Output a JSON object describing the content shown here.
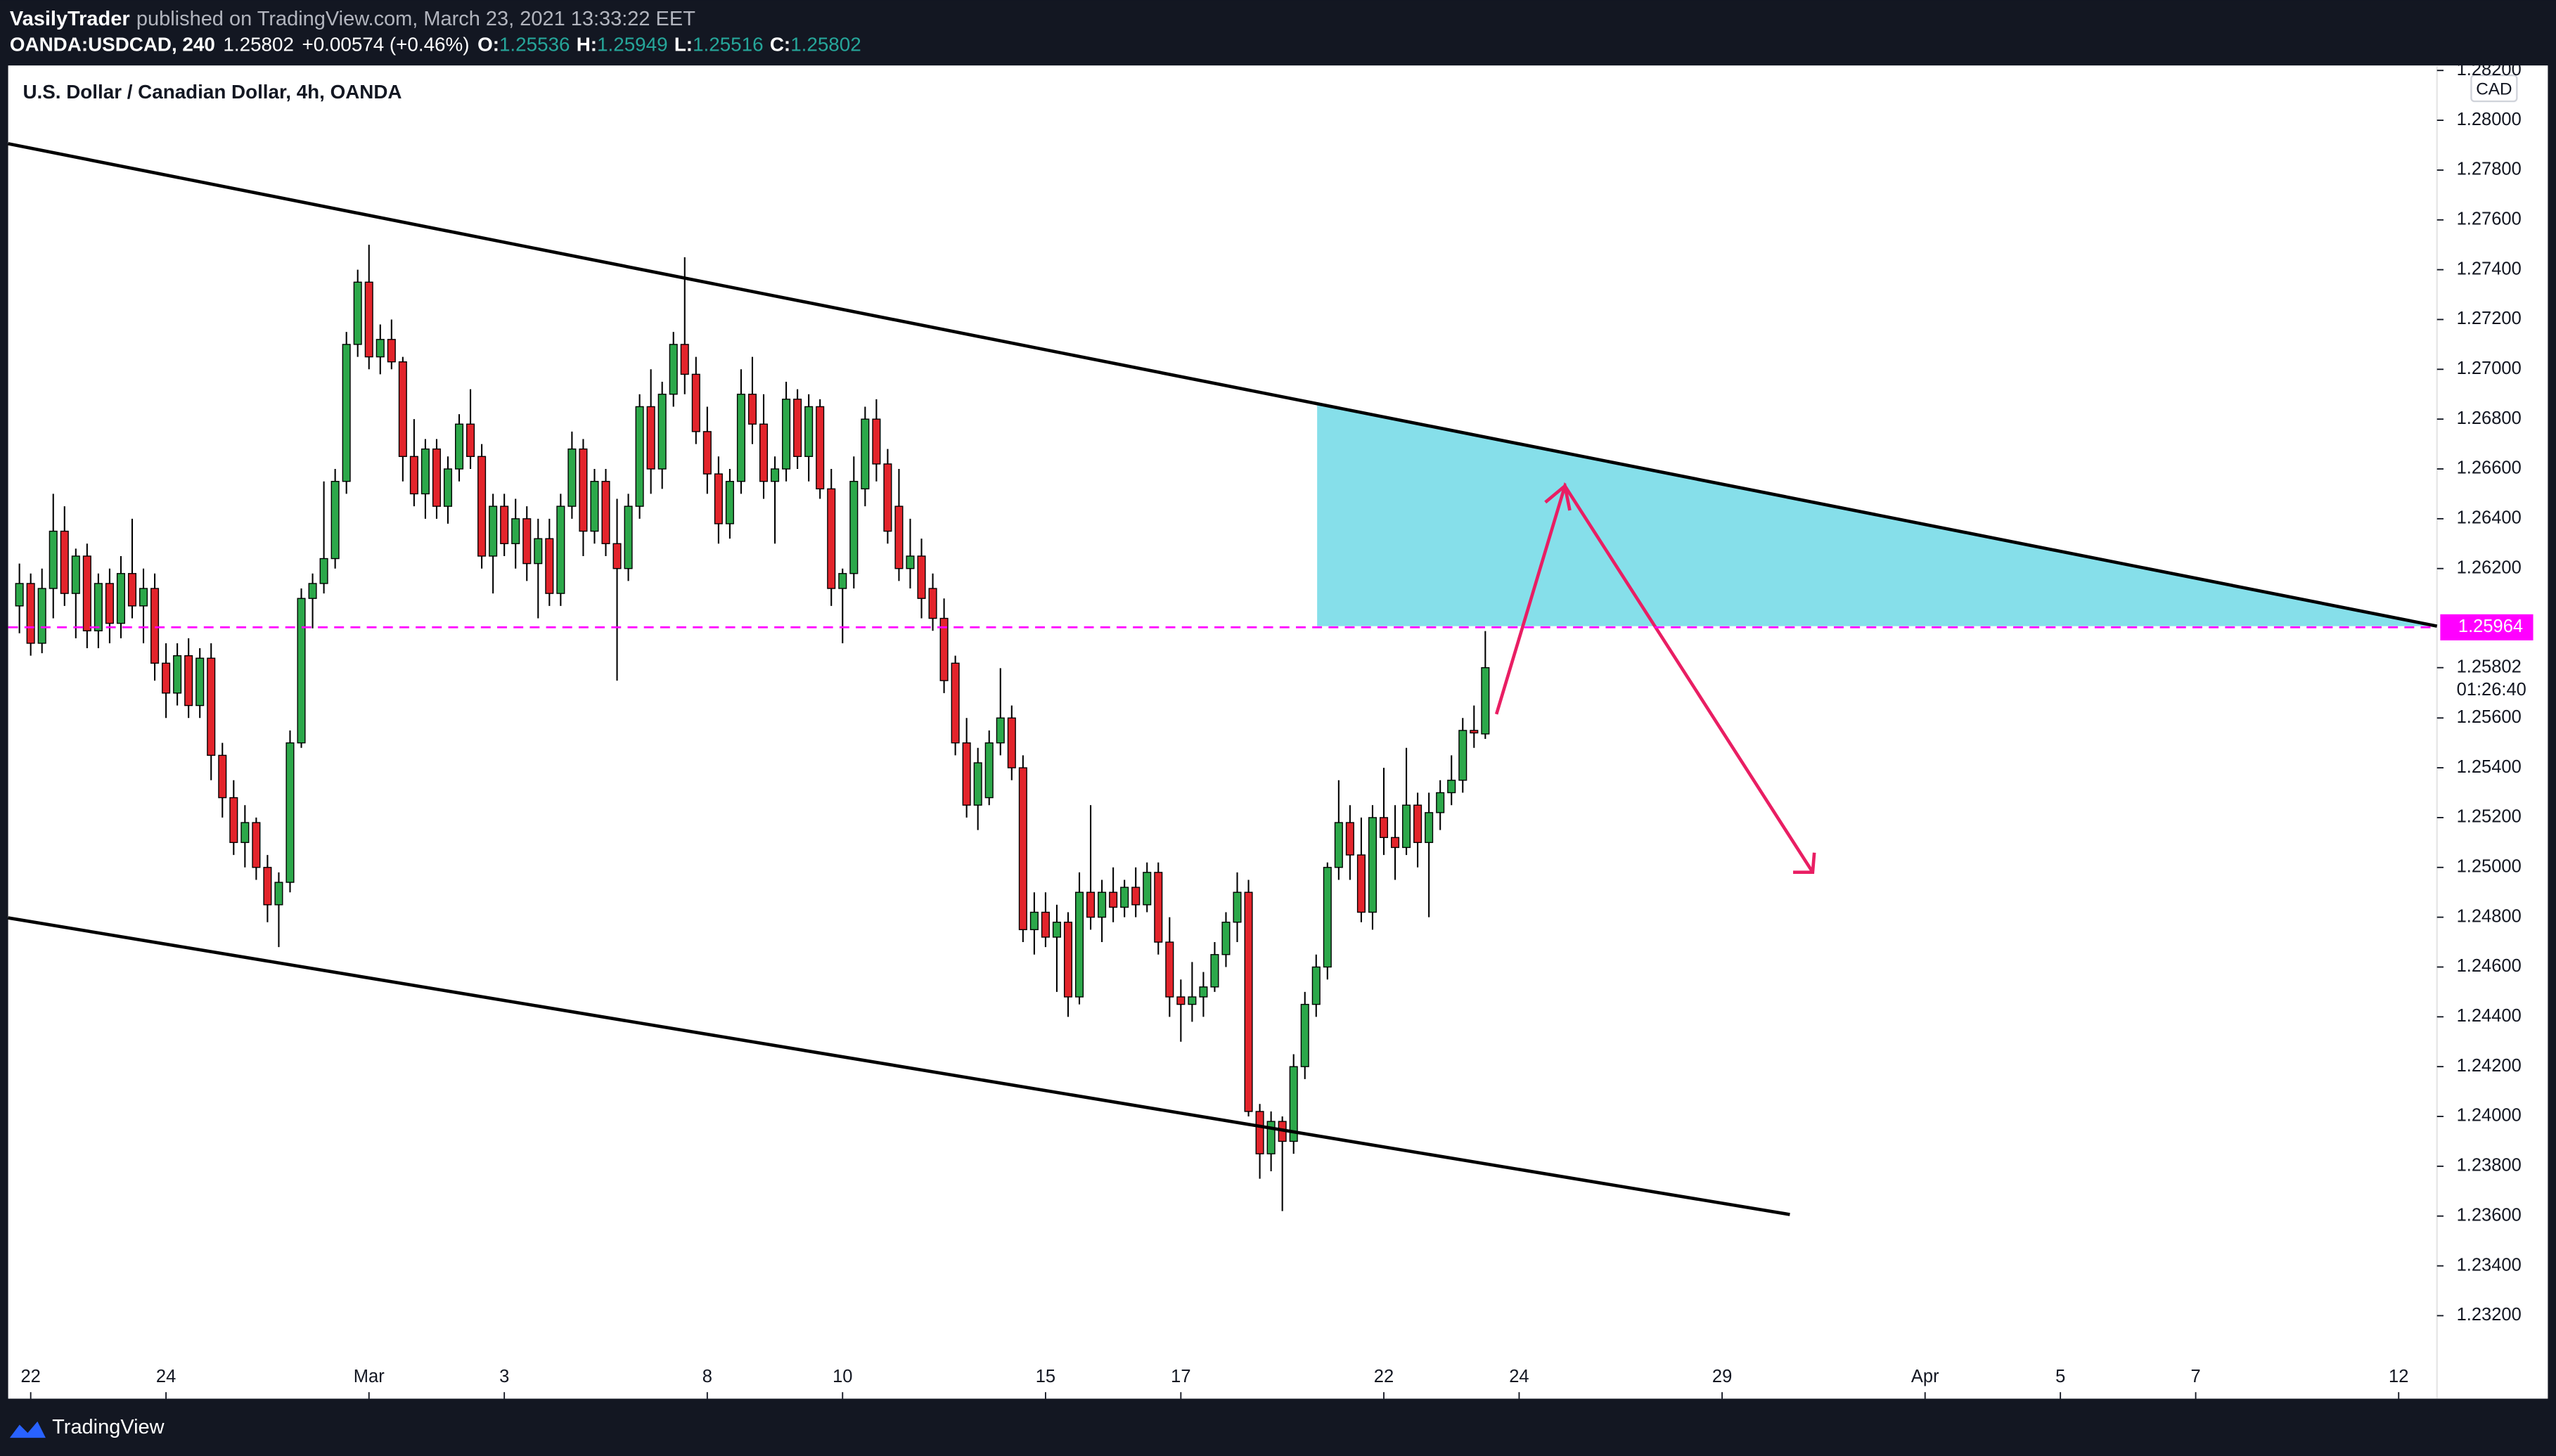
{
  "header": {
    "publisher": "VasilyTrader",
    "published": "published on TradingView.com, March 23, 2021 13:33:22 EET",
    "symbol": "OANDA:USDCAD, 240",
    "last": "1.25802",
    "change": "+0.00574 (+0.46%)",
    "o_label": "O:",
    "o": "1.25536",
    "h_label": "H:",
    "h": "1.25949",
    "l_label": "L:",
    "l": "1.25516",
    "c_label": "C:",
    "c": "1.25802"
  },
  "footer": {
    "brand": "TradingView"
  },
  "chart_data": {
    "type": "candlestick",
    "title": "U.S. Dollar / Canadian Dollar, 4h, OANDA",
    "currency": "CAD",
    "up_color": "#2ca84a",
    "down_color": "#e3242b",
    "xlim": [
      -1,
      214.4
    ],
    "xticks": [
      {
        "value": 1,
        "label": "22"
      },
      {
        "value": 13,
        "label": "24"
      },
      {
        "value": 31,
        "label": "Mar"
      },
      {
        "value": 43,
        "label": "3"
      },
      {
        "value": 61,
        "label": "8"
      },
      {
        "value": 73,
        "label": "10"
      },
      {
        "value": 91,
        "label": "15"
      },
      {
        "value": 103,
        "label": "17"
      },
      {
        "value": 121,
        "label": "22"
      },
      {
        "value": 133,
        "label": "24"
      },
      {
        "value": 151,
        "label": "29"
      },
      {
        "value": 169,
        "label": "Apr"
      },
      {
        "value": 181,
        "label": "5"
      },
      {
        "value": 193,
        "label": "7"
      },
      {
        "value": 211,
        "label": "12"
      }
    ],
    "ylim": [
      1.2305,
      1.2822
    ],
    "yticks": [
      {
        "value": 1.232,
        "label": "1.23200"
      },
      {
        "value": 1.234,
        "label": "1.23400"
      },
      {
        "value": 1.236,
        "label": "1.23600"
      },
      {
        "value": 1.238,
        "label": "1.23800"
      },
      {
        "value": 1.24,
        "label": "1.24000"
      },
      {
        "value": 1.242,
        "label": "1.24200"
      },
      {
        "value": 1.244,
        "label": "1.24400"
      },
      {
        "value": 1.246,
        "label": "1.24600"
      },
      {
        "value": 1.248,
        "label": "1.24800"
      },
      {
        "value": 1.25,
        "label": "1.25000"
      },
      {
        "value": 1.252,
        "label": "1.25200"
      },
      {
        "value": 1.254,
        "label": "1.25400"
      },
      {
        "value": 1.256,
        "label": "1.25600"
      },
      {
        "value": 1.262,
        "label": "1.26200"
      },
      {
        "value": 1.264,
        "label": "1.26400"
      },
      {
        "value": 1.266,
        "label": "1.26600"
      },
      {
        "value": 1.268,
        "label": "1.26800"
      },
      {
        "value": 1.27,
        "label": "1.27000"
      },
      {
        "value": 1.272,
        "label": "1.27200"
      },
      {
        "value": 1.274,
        "label": "1.27400"
      },
      {
        "value": 1.276,
        "label": "1.27600"
      },
      {
        "value": 1.278,
        "label": "1.27800"
      },
      {
        "value": 1.28,
        "label": "1.28000"
      },
      {
        "value": 1.282,
        "label": "1.28200"
      }
    ],
    "price_line": {
      "value": 1.25964,
      "label": "1.25964",
      "color": "#ff00ff"
    },
    "current_price": {
      "value": 1.25802,
      "label": "1.25802",
      "countdown": "01:26:40"
    },
    "ohlc": [
      [
        1.2605,
        1.2622,
        1.2594,
        1.2614
      ],
      [
        1.2614,
        1.2618,
        1.2585,
        1.259
      ],
      [
        1.259,
        1.262,
        1.2586,
        1.2612
      ],
      [
        1.2612,
        1.265,
        1.26,
        1.2635
      ],
      [
        1.2635,
        1.2645,
        1.2605,
        1.261
      ],
      [
        1.261,
        1.2628,
        1.2592,
        1.2625
      ],
      [
        1.2625,
        1.263,
        1.2588,
        1.2595
      ],
      [
        1.2595,
        1.2618,
        1.2588,
        1.2614
      ],
      [
        1.2614,
        1.262,
        1.259,
        1.2598
      ],
      [
        1.2598,
        1.2625,
        1.2592,
        1.2618
      ],
      [
        1.2618,
        1.264,
        1.26,
        1.2605
      ],
      [
        1.2605,
        1.262,
        1.259,
        1.2612
      ],
      [
        1.2612,
        1.2618,
        1.2575,
        1.2582
      ],
      [
        1.2582,
        1.259,
        1.256,
        1.257
      ],
      [
        1.257,
        1.259,
        1.2565,
        1.2585
      ],
      [
        1.2585,
        1.2592,
        1.256,
        1.2565
      ],
      [
        1.2565,
        1.2588,
        1.256,
        1.2584
      ],
      [
        1.2584,
        1.259,
        1.2535,
        1.2545
      ],
      [
        1.2545,
        1.255,
        1.252,
        1.2528
      ],
      [
        1.2528,
        1.2535,
        1.2505,
        1.251
      ],
      [
        1.251,
        1.2525,
        1.25,
        1.2518
      ],
      [
        1.2518,
        1.252,
        1.2495,
        1.25
      ],
      [
        1.25,
        1.2505,
        1.2478,
        1.2485
      ],
      [
        1.2485,
        1.2498,
        1.2468,
        1.2494
      ],
      [
        1.2494,
        1.2555,
        1.249,
        1.255
      ],
      [
        1.255,
        1.2612,
        1.2548,
        1.2608
      ],
      [
        1.2608,
        1.2618,
        1.2596,
        1.2614
      ],
      [
        1.2614,
        1.2655,
        1.261,
        1.2624
      ],
      [
        1.2624,
        1.266,
        1.262,
        1.2655
      ],
      [
        1.2655,
        1.2715,
        1.265,
        1.271
      ],
      [
        1.271,
        1.274,
        1.2705,
        1.2735
      ],
      [
        1.2735,
        1.275,
        1.27,
        1.2705
      ],
      [
        1.2705,
        1.2718,
        1.2698,
        1.2712
      ],
      [
        1.2712,
        1.272,
        1.27,
        1.2703
      ],
      [
        1.2703,
        1.2705,
        1.2655,
        1.2665
      ],
      [
        1.2665,
        1.268,
        1.2645,
        1.265
      ],
      [
        1.265,
        1.2672,
        1.264,
        1.2668
      ],
      [
        1.2668,
        1.2672,
        1.264,
        1.2645
      ],
      [
        1.2645,
        1.2665,
        1.2638,
        1.266
      ],
      [
        1.266,
        1.2682,
        1.2655,
        1.2678
      ],
      [
        1.2678,
        1.2692,
        1.266,
        1.2665
      ],
      [
        1.2665,
        1.267,
        1.262,
        1.2625
      ],
      [
        1.2625,
        1.265,
        1.261,
        1.2645
      ],
      [
        1.2645,
        1.265,
        1.2625,
        1.263
      ],
      [
        1.263,
        1.2648,
        1.262,
        1.264
      ],
      [
        1.264,
        1.2645,
        1.2615,
        1.2622
      ],
      [
        1.2622,
        1.264,
        1.26,
        1.2632
      ],
      [
        1.2632,
        1.264,
        1.2605,
        1.261
      ],
      [
        1.261,
        1.265,
        1.2605,
        1.2645
      ],
      [
        1.2645,
        1.2675,
        1.264,
        1.2668
      ],
      [
        1.2668,
        1.2672,
        1.2625,
        1.2635
      ],
      [
        1.2635,
        1.266,
        1.263,
        1.2655
      ],
      [
        1.2655,
        1.266,
        1.2625,
        1.263
      ],
      [
        1.263,
        1.2648,
        1.2575,
        1.262
      ],
      [
        1.262,
        1.265,
        1.2615,
        1.2645
      ],
      [
        1.2645,
        1.269,
        1.264,
        1.2685
      ],
      [
        1.2685,
        1.27,
        1.265,
        1.266
      ],
      [
        1.266,
        1.2695,
        1.2652,
        1.269
      ],
      [
        1.269,
        1.2715,
        1.2685,
        1.271
      ],
      [
        1.271,
        1.2745,
        1.269,
        1.2698
      ],
      [
        1.2698,
        1.2705,
        1.267,
        1.2675
      ],
      [
        1.2675,
        1.2685,
        1.265,
        1.2658
      ],
      [
        1.2658,
        1.2665,
        1.263,
        1.2638
      ],
      [
        1.2638,
        1.266,
        1.2632,
        1.2655
      ],
      [
        1.2655,
        1.27,
        1.265,
        1.269
      ],
      [
        1.269,
        1.2705,
        1.267,
        1.2678
      ],
      [
        1.2678,
        1.269,
        1.2648,
        1.2655
      ],
      [
        1.2655,
        1.2665,
        1.263,
        1.266
      ],
      [
        1.266,
        1.2695,
        1.2655,
        1.2688
      ],
      [
        1.2688,
        1.2692,
        1.266,
        1.2665
      ],
      [
        1.2665,
        1.269,
        1.2655,
        1.2685
      ],
      [
        1.2685,
        1.2688,
        1.2648,
        1.2652
      ],
      [
        1.2652,
        1.266,
        1.2605,
        1.2612
      ],
      [
        1.2612,
        1.262,
        1.259,
        1.2618
      ],
      [
        1.2618,
        1.2665,
        1.2612,
        1.2655
      ],
      [
        1.2652,
        1.2685,
        1.2645,
        1.268
      ],
      [
        1.268,
        1.2688,
        1.2655,
        1.2662
      ],
      [
        1.2662,
        1.2668,
        1.263,
        1.2635
      ],
      [
        1.2645,
        1.266,
        1.2615,
        1.262
      ],
      [
        1.262,
        1.264,
        1.2612,
        1.2625
      ],
      [
        1.2625,
        1.2632,
        1.26,
        1.2608
      ],
      [
        1.2612,
        1.2618,
        1.2595,
        1.26
      ],
      [
        1.26,
        1.2608,
        1.257,
        1.2575
      ],
      [
        1.2582,
        1.2585,
        1.2545,
        1.255
      ],
      [
        1.255,
        1.256,
        1.252,
        1.2525
      ],
      [
        1.2525,
        1.2548,
        1.2515,
        1.2542
      ],
      [
        1.2528,
        1.2555,
        1.2525,
        1.255
      ],
      [
        1.255,
        1.258,
        1.2545,
        1.256
      ],
      [
        1.256,
        1.2565,
        1.2535,
        1.254
      ],
      [
        1.254,
        1.2545,
        1.247,
        1.2475
      ],
      [
        1.2475,
        1.249,
        1.2465,
        1.2482
      ],
      [
        1.2482,
        1.249,
        1.2468,
        1.2472
      ],
      [
        1.2472,
        1.2485,
        1.245,
        1.2478
      ],
      [
        1.2478,
        1.2482,
        1.244,
        1.2448
      ],
      [
        1.2448,
        1.2498,
        1.2445,
        1.249
      ],
      [
        1.249,
        1.2525,
        1.2475,
        1.248
      ],
      [
        1.248,
        1.2495,
        1.247,
        1.249
      ],
      [
        1.249,
        1.25,
        1.2478,
        1.2484
      ],
      [
        1.2484,
        1.2495,
        1.248,
        1.2492
      ],
      [
        1.2492,
        1.25,
        1.248,
        1.2485
      ],
      [
        1.2485,
        1.2502,
        1.2482,
        1.2498
      ],
      [
        1.2498,
        1.2502,
        1.2465,
        1.247
      ],
      [
        1.247,
        1.248,
        1.244,
        1.2448
      ],
      [
        1.2448,
        1.2455,
        1.243,
        1.2445
      ],
      [
        1.2445,
        1.2462,
        1.2438,
        1.2448
      ],
      [
        1.2448,
        1.2458,
        1.244,
        1.2452
      ],
      [
        1.2452,
        1.247,
        1.245,
        1.2465
      ],
      [
        1.2465,
        1.2482,
        1.246,
        1.2478
      ],
      [
        1.2478,
        1.2498,
        1.247,
        1.249
      ],
      [
        1.249,
        1.2495,
        1.24,
        1.2402
      ],
      [
        1.2402,
        1.2405,
        1.2375,
        1.2385
      ],
      [
        1.2385,
        1.2402,
        1.2378,
        1.2398
      ],
      [
        1.2398,
        1.24,
        1.2362,
        1.239
      ],
      [
        1.239,
        1.2425,
        1.2385,
        1.242
      ],
      [
        1.242,
        1.245,
        1.2415,
        1.2445
      ],
      [
        1.2445,
        1.2465,
        1.244,
        1.246
      ],
      [
        1.246,
        1.2502,
        1.2455,
        1.25
      ],
      [
        1.25,
        1.2535,
        1.2495,
        1.2518
      ],
      [
        1.2518,
        1.2525,
        1.2495,
        1.2505
      ],
      [
        1.2505,
        1.252,
        1.2478,
        1.2482
      ],
      [
        1.2482,
        1.2525,
        1.2475,
        1.252
      ],
      [
        1.252,
        1.254,
        1.2505,
        1.2512
      ],
      [
        1.2512,
        1.2525,
        1.2495,
        1.2508
      ],
      [
        1.2508,
        1.2548,
        1.2505,
        1.2525
      ],
      [
        1.2525,
        1.253,
        1.25,
        1.251
      ],
      [
        1.251,
        1.253,
        1.248,
        1.2522
      ],
      [
        1.2522,
        1.2535,
        1.2515,
        1.253
      ],
      [
        1.253,
        1.2545,
        1.2525,
        1.2535
      ],
      [
        1.2535,
        1.256,
        1.253,
        1.2555
      ],
      [
        1.2555,
        1.2565,
        1.2548,
        1.2554
      ],
      [
        1.25536,
        1.25949,
        1.25516,
        1.25802
      ]
    ]
  }
}
